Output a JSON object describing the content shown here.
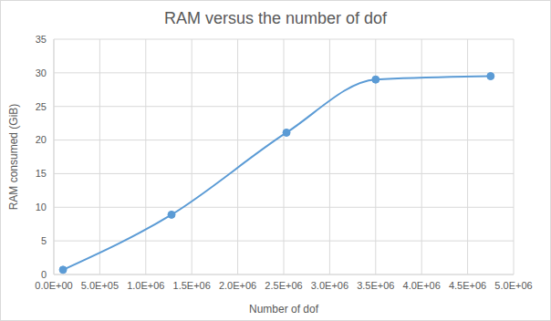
{
  "chart_data": {
    "type": "line",
    "title": "RAM versus the number of dof",
    "x_label": "Number of dof",
    "y_label": "RAM consumed (GiB)",
    "x": [
      100000,
      1280000,
      2530000,
      3500000,
      4750000
    ],
    "series": [
      {
        "name": "RAM consumed (GiB)",
        "color": "#5b9bd5",
        "values": [
          0.7,
          8.9,
          21.1,
          29.0,
          29.5
        ]
      }
    ],
    "xlim": [
      0,
      5000000
    ],
    "xticks": [
      {
        "value": 0,
        "label": "0.0E+00"
      },
      {
        "value": 500000,
        "label": "5.0E+05"
      },
      {
        "value": 1000000,
        "label": "1.0E+06"
      },
      {
        "value": 1500000,
        "label": "1.5E+06"
      },
      {
        "value": 2000000,
        "label": "2.0E+06"
      },
      {
        "value": 2500000,
        "label": "2.5E+06"
      },
      {
        "value": 3000000,
        "label": "3.0E+06"
      },
      {
        "value": 3500000,
        "label": "3.5E+06"
      },
      {
        "value": 4000000,
        "label": "4.0E+06"
      },
      {
        "value": 4500000,
        "label": "4.5E+06"
      },
      {
        "value": 5000000,
        "label": "5.0E+06"
      }
    ],
    "ylim": [
      0,
      35
    ],
    "yticks": [
      0,
      5,
      10,
      15,
      20,
      25,
      30,
      35
    ],
    "grid": true,
    "marker": "circle",
    "line_style": "smooth"
  }
}
